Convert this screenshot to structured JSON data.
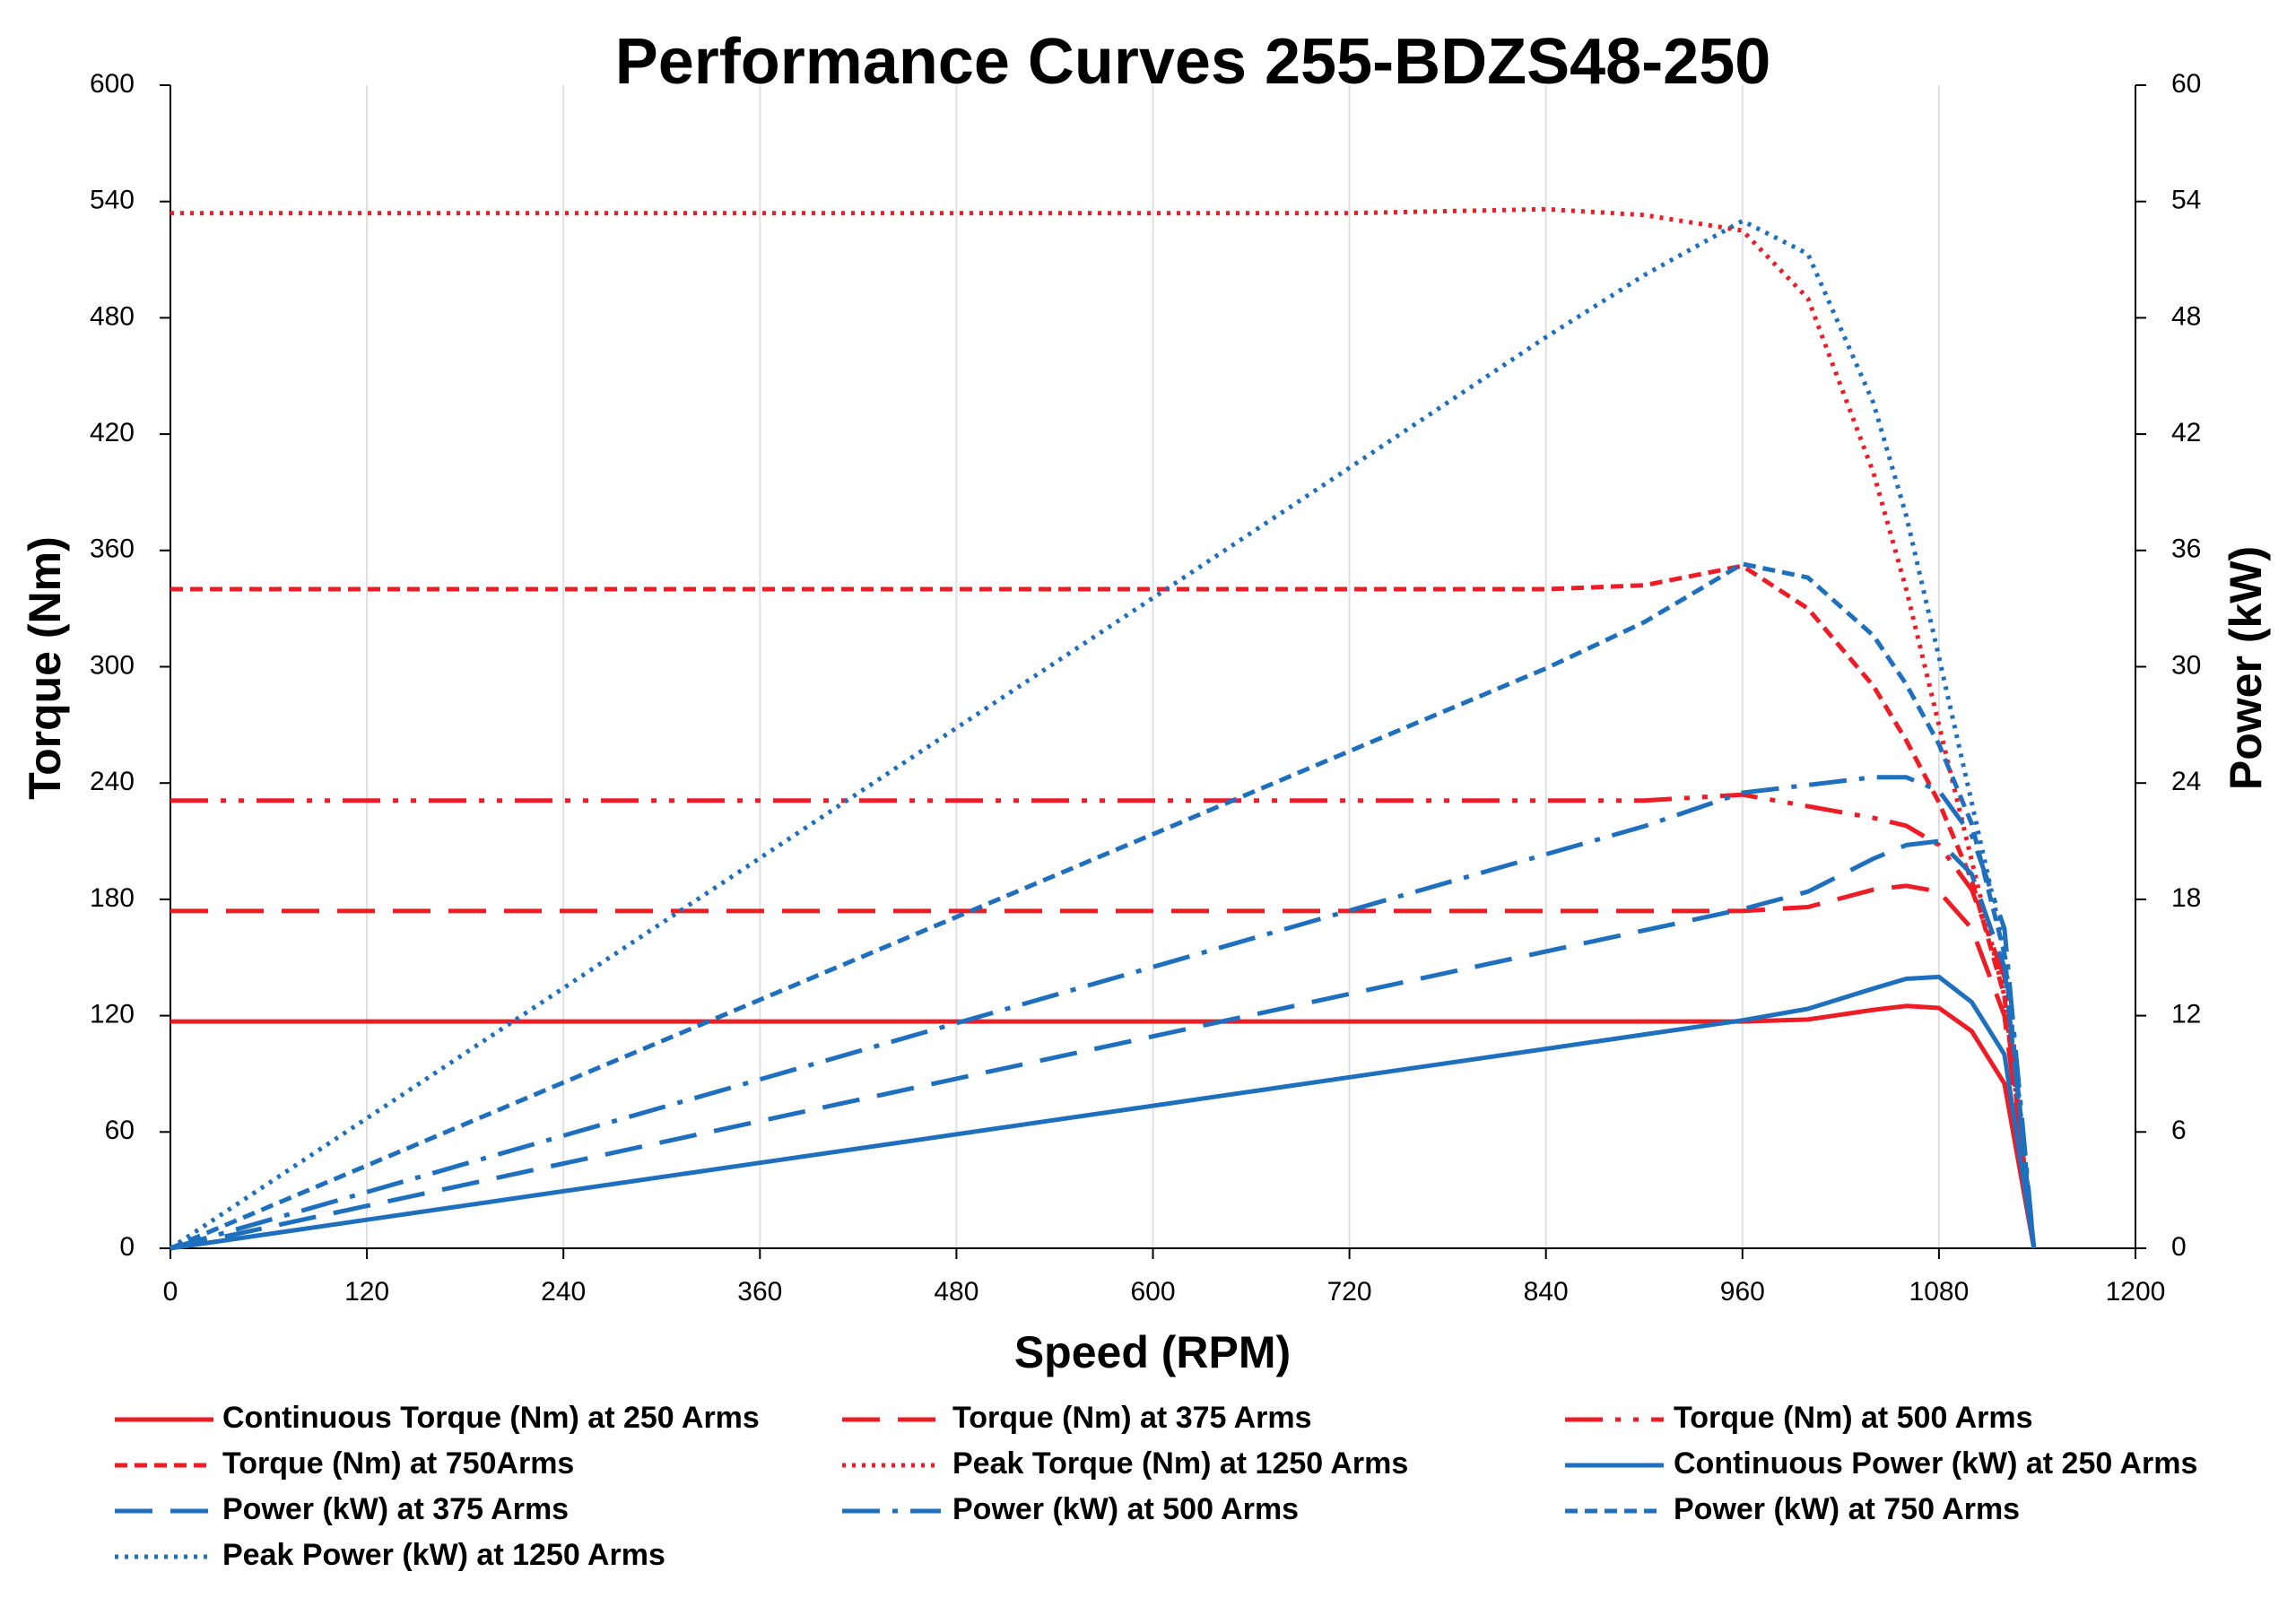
{
  "chart_data": {
    "type": "line",
    "title": "Performance Curves 255-BDZS48-250",
    "x_label": "Speed (RPM)",
    "y_label": "Torque (Nm)",
    "y2_label": "Power (kW)",
    "x": [
      0,
      120,
      240,
      360,
      480,
      600,
      720,
      840,
      900,
      960,
      1000,
      1040,
      1060,
      1080,
      1100,
      1120,
      1138
    ],
    "xlim": [
      0,
      1200
    ],
    "xticks": [
      0,
      120,
      240,
      360,
      480,
      600,
      720,
      840,
      960,
      1080,
      1200
    ],
    "ylim": [
      0,
      600
    ],
    "yticks": [
      0,
      60,
      120,
      180,
      240,
      300,
      360,
      420,
      480,
      540,
      600
    ],
    "y2lim": [
      0,
      60
    ],
    "y2ticks": [
      0,
      6,
      12,
      18,
      24,
      30,
      36,
      42,
      48,
      54,
      60
    ],
    "grid": "x",
    "series": [
      {
        "name": "Continuous Torque (Nm) at 250 Arms",
        "color": "#ee1c25",
        "dash": "solid",
        "values": [
          117,
          117,
          117,
          117,
          117,
          117,
          117,
          117,
          117,
          117,
          118,
          123,
          125,
          124,
          112,
          85,
          0
        ]
      },
      {
        "name": "Torque (Nm) at 375 Arms",
        "color": "#ee1c25",
        "dash": "long-dash",
        "values": [
          174,
          174,
          174,
          174,
          174,
          174,
          174,
          174,
          174,
          174,
          176,
          185,
          187,
          184,
          165,
          120,
          0
        ]
      },
      {
        "name": "Torque (Nm) at 500 Arms",
        "color": "#ee1c25",
        "dash": "dash-dot-dot",
        "values": [
          231,
          231,
          231,
          231,
          231,
          231,
          231,
          231,
          231,
          234,
          228,
          222,
          218,
          208,
          185,
          140,
          0
        ]
      },
      {
        "name": "Torque (Nm) at 750Arms",
        "color": "#ee1c25",
        "dash": "short-dash",
        "values": [
          340,
          340,
          340,
          340,
          340,
          340,
          340,
          340,
          342,
          352,
          330,
          290,
          262,
          230,
          190,
          130,
          0
        ]
      },
      {
        "name": "Peak Torque (Nm) at 1250  Arms",
        "color": "#ee1c25",
        "dash": "dot",
        "values": [
          534,
          534,
          534,
          534,
          534,
          534,
          534,
          536,
          533,
          525,
          490,
          400,
          340,
          270,
          200,
          130,
          0
        ]
      },
      {
        "name": "Continuous Power (kW) at 250 Arms",
        "color": "#1f6fbf",
        "dash": "solid",
        "axis": "y2",
        "values": [
          0,
          1.47,
          2.94,
          4.41,
          5.88,
          7.35,
          8.82,
          10.29,
          11.03,
          11.76,
          12.35,
          13.4,
          13.9,
          14.0,
          12.7,
          10.0,
          0
        ]
      },
      {
        "name": "Power (kW) at 375 Arms",
        "color": "#1f6fbf",
        "dash": "long-dash",
        "axis": "y2",
        "values": [
          0,
          2.19,
          4.37,
          6.56,
          8.75,
          10.93,
          13.12,
          15.31,
          16.4,
          17.49,
          18.4,
          20.1,
          20.8,
          21.0,
          19.3,
          14.5,
          0
        ]
      },
      {
        "name": "Power (kW) at 500 Arms",
        "color": "#1f6fbf",
        "dash": "dash-dot",
        "axis": "y2",
        "values": [
          0,
          2.9,
          5.81,
          8.71,
          11.61,
          14.51,
          17.42,
          20.32,
          21.77,
          23.5,
          23.9,
          24.3,
          24.3,
          23.6,
          21.3,
          16.5,
          0
        ]
      },
      {
        "name": "Power (kW) at 750 Arms",
        "color": "#1f6fbf",
        "dash": "short-dash",
        "axis": "y2",
        "values": [
          0,
          4.27,
          8.55,
          12.82,
          17.09,
          21.36,
          25.64,
          29.91,
          32.3,
          35.3,
          34.6,
          31.6,
          29.1,
          26.0,
          21.9,
          15.2,
          0
        ]
      },
      {
        "name": "Peak Power (kW) at 1250 Arms",
        "color": "#1f6fbf",
        "dash": "dot",
        "axis": "y2",
        "values": [
          0,
          6.71,
          13.42,
          20.13,
          26.84,
          33.55,
          40.26,
          47.0,
          50.2,
          53.0,
          51.3,
          43.6,
          37.8,
          30.5,
          23.0,
          15.4,
          0
        ]
      }
    ]
  }
}
